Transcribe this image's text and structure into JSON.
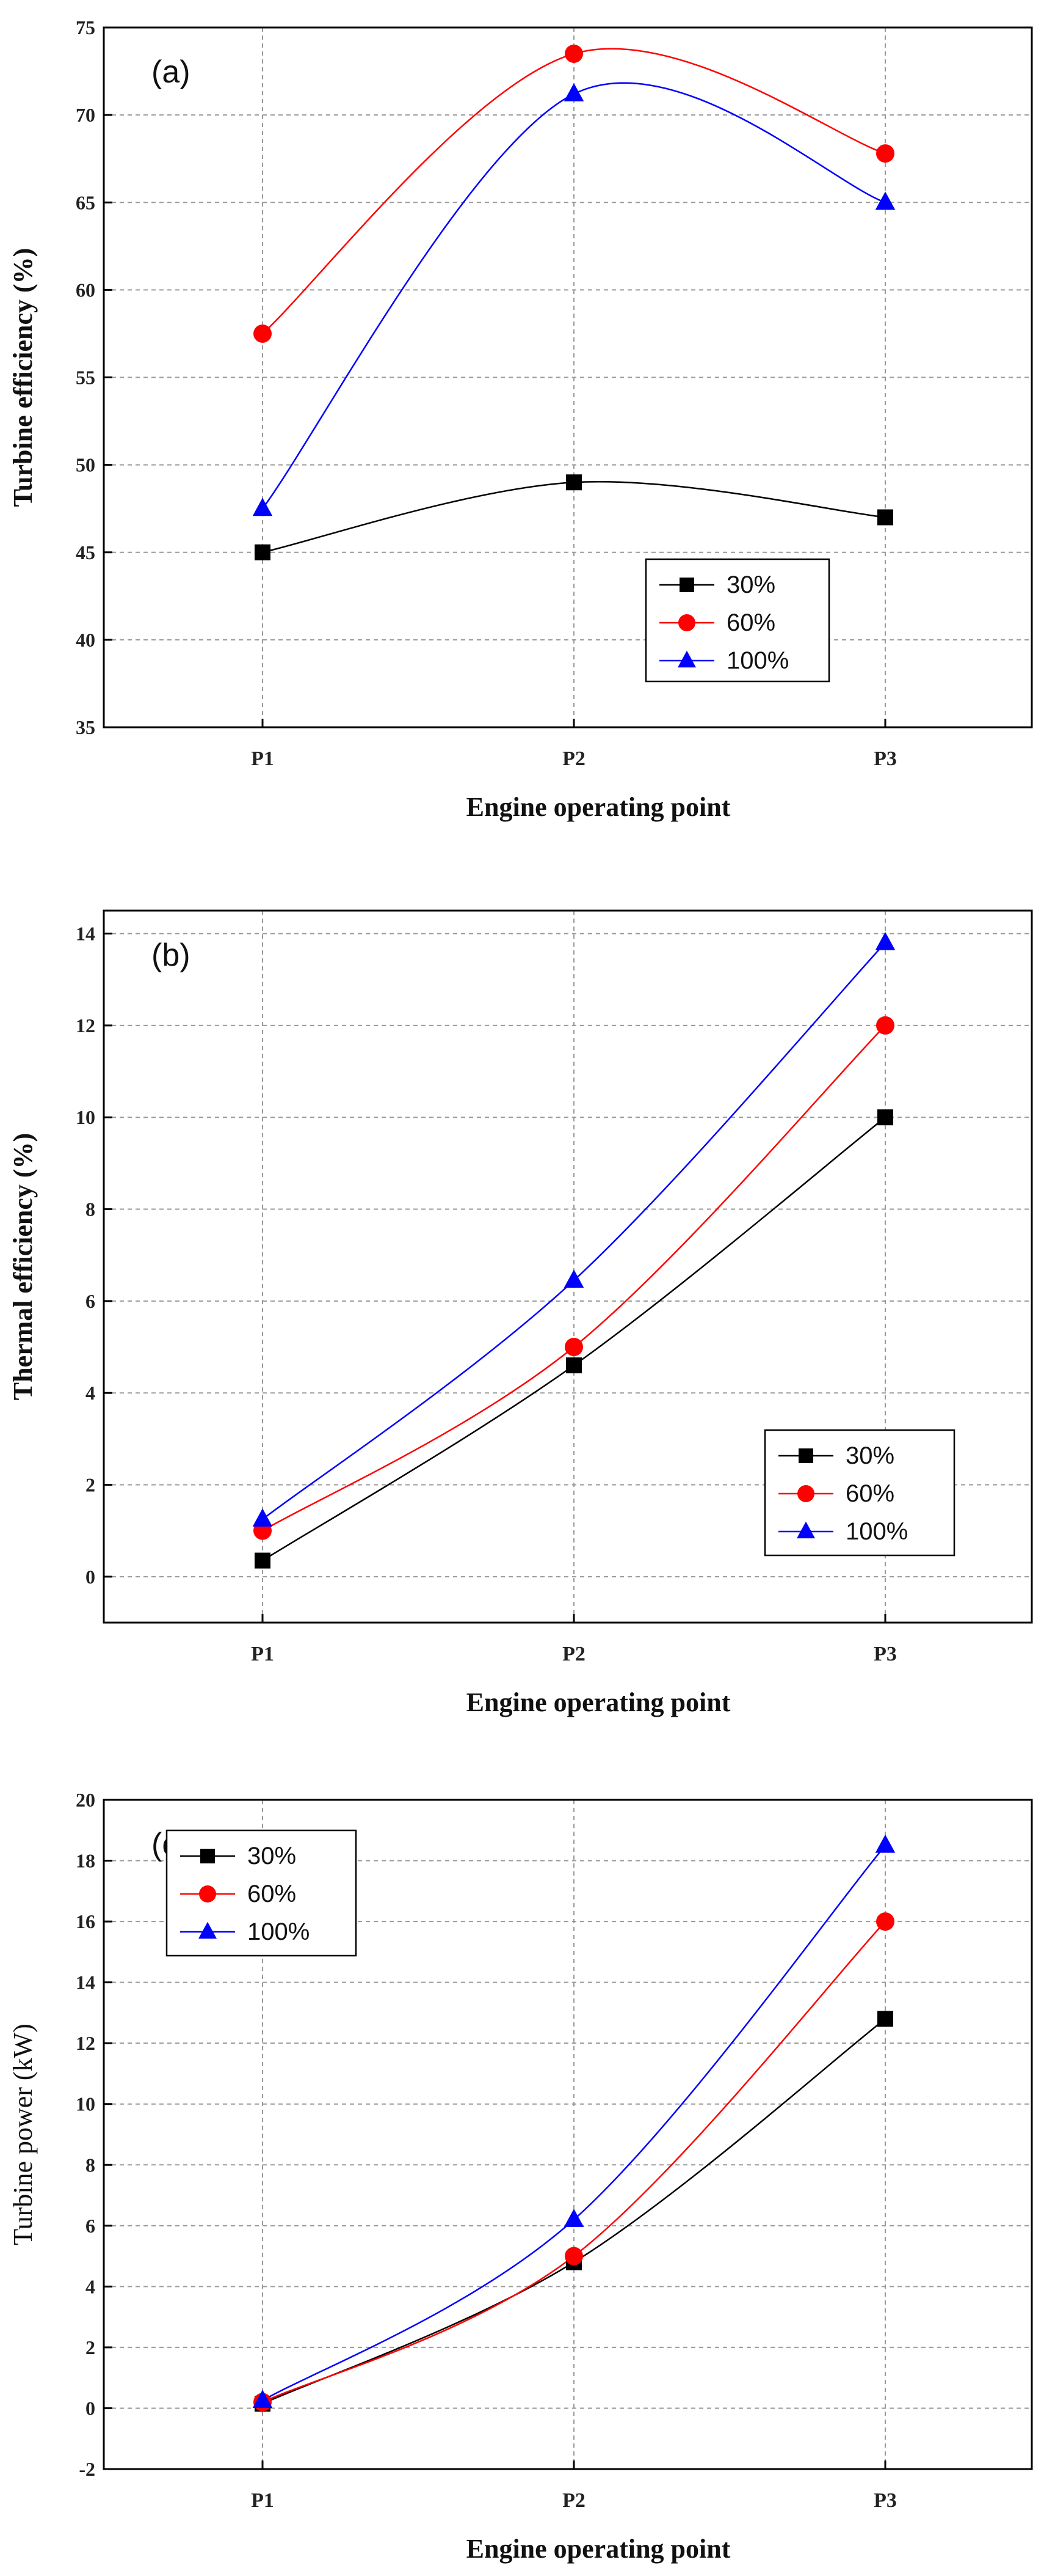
{
  "colors": {
    "series_30": "#000000",
    "series_60": "#ff0000",
    "series_100": "#0000ff",
    "grid": "#9a9a9a",
    "axis": "#000000"
  },
  "chart_data": [
    {
      "type": "line",
      "panel_label": "(a)",
      "title": "",
      "xlabel": "Engine operating point",
      "ylabel": "Turbine efficiency (%)",
      "ylabel_bold": true,
      "categories": [
        "P1",
        "P2",
        "P3"
      ],
      "ylim": [
        35,
        75
      ],
      "yticks": [
        35,
        40,
        45,
        50,
        55,
        60,
        65,
        70,
        75
      ],
      "ytick_labels": [
        "35",
        "40",
        "45",
        "50",
        "55",
        "60",
        "65",
        "70",
        "75"
      ],
      "grid": true,
      "legend_position": "center-right",
      "series": [
        {
          "name": "30%",
          "marker": "square",
          "color": "#000000",
          "values": [
            45,
            49,
            47
          ]
        },
        {
          "name": "60%",
          "marker": "circle",
          "color": "#ff0000",
          "values": [
            57.5,
            73.5,
            67.8
          ]
        },
        {
          "name": "100%",
          "marker": "triangle",
          "color": "#0000ff",
          "values": [
            47.5,
            71.2,
            65
          ]
        }
      ]
    },
    {
      "type": "line",
      "panel_label": "(b)",
      "title": "",
      "xlabel": "Engine operating point",
      "ylabel": "Thermal efficiency (%)",
      "ylabel_bold": true,
      "categories": [
        "P1",
        "P2",
        "P3"
      ],
      "ylim": [
        -1,
        14.5
      ],
      "yticks": [
        0,
        2,
        4,
        6,
        8,
        10,
        12,
        14
      ],
      "ytick_labels": [
        "0",
        "2",
        "4",
        "6",
        "8",
        "10",
        "12",
        "14"
      ],
      "grid": true,
      "legend_position": "bottom-right",
      "series": [
        {
          "name": "30%",
          "marker": "square",
          "color": "#000000",
          "values": [
            0.35,
            4.6,
            10
          ]
        },
        {
          "name": "60%",
          "marker": "circle",
          "color": "#ff0000",
          "values": [
            1.0,
            5.0,
            12
          ]
        },
        {
          "name": "100%",
          "marker": "triangle",
          "color": "#0000ff",
          "values": [
            1.25,
            6.45,
            13.8
          ]
        }
      ]
    },
    {
      "type": "line",
      "panel_label": "(c)",
      "title": "",
      "xlabel": "Engine operating point",
      "ylabel": "Turbine power (kW)",
      "ylabel_bold": false,
      "categories": [
        "P1",
        "P2",
        "P3"
      ],
      "ylim": [
        -2,
        20
      ],
      "yticks": [
        -2,
        0,
        2,
        4,
        6,
        8,
        10,
        12,
        14,
        16,
        18,
        20
      ],
      "ytick_labels": [
        "-2",
        "0",
        "2",
        "4",
        "6",
        "8",
        "10",
        "12",
        "14",
        "16",
        "18",
        "20"
      ],
      "grid": true,
      "legend_position": "top-left",
      "series": [
        {
          "name": "30%",
          "marker": "square",
          "color": "#000000",
          "values": [
            0.15,
            4.8,
            12.8
          ]
        },
        {
          "name": "60%",
          "marker": "circle",
          "color": "#ff0000",
          "values": [
            0.2,
            5.0,
            16
          ]
        },
        {
          "name": "100%",
          "marker": "triangle",
          "color": "#0000ff",
          "values": [
            0.25,
            6.2,
            18.5
          ]
        }
      ]
    }
  ]
}
